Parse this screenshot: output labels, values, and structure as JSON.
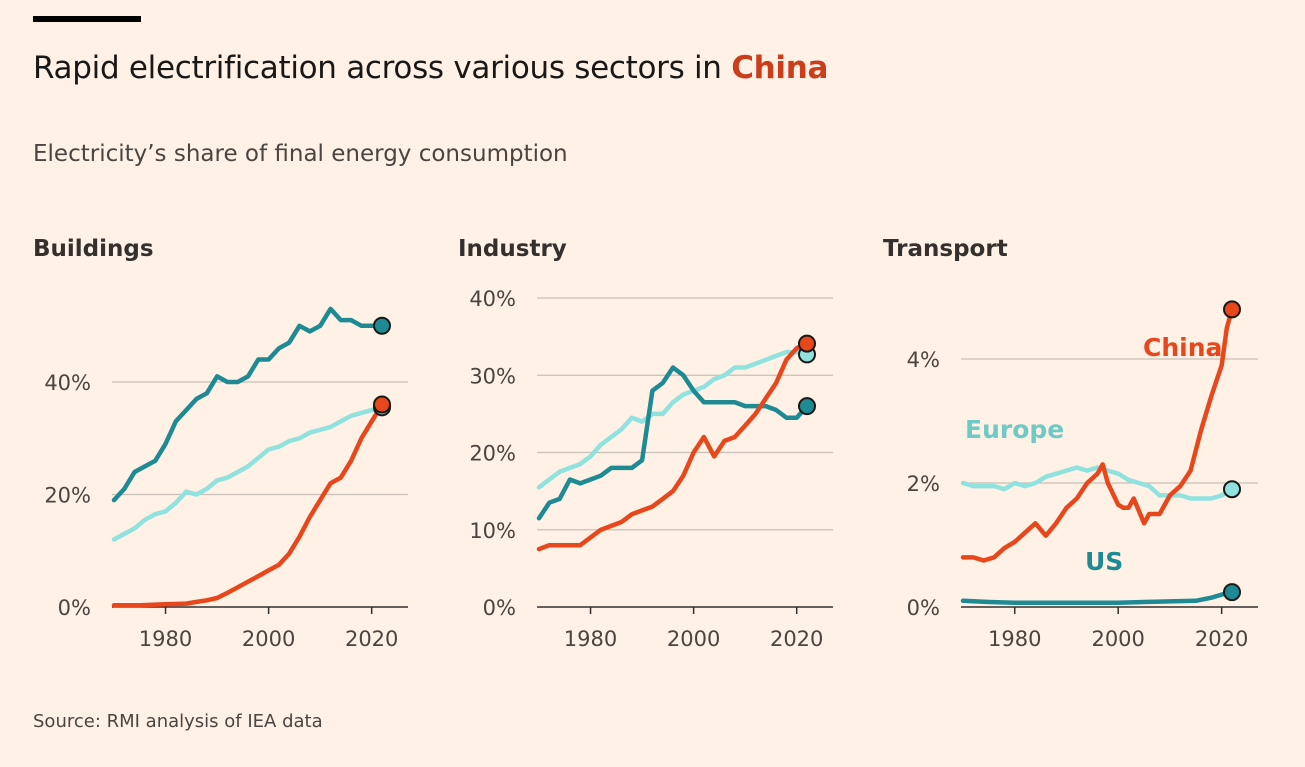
{
  "header": {
    "title_prefix": "Rapid electrification across various sectors in",
    "title_highlight": "China",
    "subtitle": "Electricity’s share of final energy consumption"
  },
  "source": "Source: RMI analysis of IEA data",
  "colors": {
    "background": "#fff1e5",
    "china": "#e8471c",
    "us": "#1e8a94",
    "europe": "#8fe2de",
    "grid": "#c8bfb6",
    "text": "#33302e"
  },
  "chart_data": [
    {
      "type": "line",
      "title": "Buildings",
      "x_ticks": [
        1980,
        2000,
        2020
      ],
      "y_ticks": [
        0,
        20,
        40
      ],
      "y_tick_labels": [
        "0%",
        "20%",
        "40%"
      ],
      "xlim": [
        1970,
        2027
      ],
      "ylim": [
        0,
        55
      ],
      "series": [
        {
          "key": "us",
          "x": [
            1970,
            1972,
            1974,
            1976,
            1978,
            1980,
            1982,
            1984,
            1986,
            1988,
            1990,
            1992,
            1994,
            1996,
            1998,
            2000,
            2002,
            2004,
            2006,
            2008,
            2010,
            2012,
            2014,
            2016,
            2018,
            2020,
            2022
          ],
          "values": [
            19,
            21,
            24,
            25,
            26,
            29,
            33,
            35,
            37,
            38,
            41,
            40,
            40,
            41,
            44,
            44,
            46,
            47,
            50,
            49,
            50,
            53,
            51,
            51,
            50,
            50,
            50
          ]
        },
        {
          "key": "europe",
          "x": [
            1970,
            1972,
            1974,
            1976,
            1978,
            1980,
            1982,
            1984,
            1986,
            1988,
            1990,
            1992,
            1994,
            1996,
            1998,
            2000,
            2002,
            2004,
            2006,
            2008,
            2010,
            2012,
            2014,
            2016,
            2018,
            2020,
            2022
          ],
          "values": [
            12,
            13,
            14,
            15.5,
            16.5,
            17,
            18.5,
            20.5,
            20,
            21,
            22.5,
            23,
            24,
            25,
            26.5,
            28,
            28.5,
            29.5,
            30,
            31,
            31.5,
            32,
            33,
            34,
            34.5,
            35,
            35.5
          ]
        },
        {
          "key": "china",
          "x": [
            1970,
            1975,
            1980,
            1984,
            1986,
            1988,
            1990,
            1992,
            1994,
            1996,
            1998,
            2000,
            2002,
            2004,
            2006,
            2008,
            2010,
            2012,
            2014,
            2016,
            2018,
            2020,
            2022
          ],
          "values": [
            0.3,
            0.3,
            0.5,
            0.6,
            0.9,
            1.2,
            1.6,
            2.5,
            3.5,
            4.5,
            5.5,
            6.5,
            7.5,
            9.5,
            12.5,
            16,
            19,
            22,
            23,
            26,
            30,
            33,
            36
          ]
        }
      ]
    },
    {
      "type": "line",
      "title": "Industry",
      "x_ticks": [
        1980,
        2000,
        2020
      ],
      "y_ticks": [
        0,
        10,
        20,
        30,
        40
      ],
      "y_tick_labels": [
        "0%",
        "10%",
        "20%",
        "30%",
        "40%"
      ],
      "xlim": [
        1970,
        2027
      ],
      "ylim": [
        0,
        40
      ],
      "series": [
        {
          "key": "europe",
          "x": [
            1970,
            1972,
            1974,
            1976,
            1978,
            1980,
            1982,
            1984,
            1986,
            1988,
            1990,
            1992,
            1994,
            1996,
            1998,
            2000,
            2002,
            2004,
            2006,
            2008,
            2010,
            2012,
            2014,
            2016,
            2018,
            2020,
            2022
          ],
          "values": [
            15.5,
            16.5,
            17.5,
            18,
            18.5,
            19.5,
            21,
            22,
            23,
            24.5,
            24,
            25,
            25,
            26.5,
            27.5,
            28,
            28.5,
            29.5,
            30,
            31,
            31,
            31.5,
            32,
            32.5,
            33,
            33,
            32.7
          ]
        },
        {
          "key": "us",
          "x": [
            1970,
            1972,
            1974,
            1976,
            1978,
            1980,
            1982,
            1984,
            1986,
            1988,
            1990,
            1992,
            1994,
            1996,
            1998,
            2000,
            2002,
            2004,
            2006,
            2008,
            2010,
            2012,
            2014,
            2016,
            2018,
            2020,
            2022
          ],
          "values": [
            11.5,
            13.5,
            14,
            16.5,
            16,
            16.5,
            17,
            18,
            18,
            18,
            19,
            28,
            29,
            31,
            30,
            28,
            26.5,
            26.5,
            26.5,
            26.5,
            26,
            26,
            26,
            25.5,
            24.5,
            24.5,
            26
          ]
        },
        {
          "key": "china",
          "x": [
            1970,
            1972,
            1974,
            1976,
            1978,
            1980,
            1982,
            1984,
            1986,
            1988,
            1990,
            1992,
            1994,
            1996,
            1998,
            2000,
            2002,
            2004,
            2006,
            2008,
            2010,
            2012,
            2014,
            2016,
            2018,
            2020,
            2022
          ],
          "values": [
            7.5,
            8,
            8,
            8,
            8,
            9,
            10,
            10.5,
            11,
            12,
            12.5,
            13,
            14,
            15,
            17,
            20,
            22,
            19.5,
            21.5,
            22,
            23.5,
            25,
            27,
            29,
            32,
            33.5,
            34.1
          ]
        }
      ]
    },
    {
      "type": "line",
      "title": "Transport",
      "x_ticks": [
        1980,
        2000,
        2020
      ],
      "y_ticks": [
        0,
        2,
        4
      ],
      "y_tick_labels": [
        "0%",
        "2%",
        "4%"
      ],
      "xlim": [
        1970,
        2027
      ],
      "ylim": [
        0,
        5
      ],
      "annotations": [
        {
          "key": "china",
          "text": "China"
        },
        {
          "key": "europe",
          "text": "Europe"
        },
        {
          "key": "us",
          "text": "US"
        }
      ],
      "series": [
        {
          "key": "europe",
          "x": [
            1970,
            1972,
            1974,
            1976,
            1978,
            1980,
            1982,
            1984,
            1986,
            1988,
            1990,
            1992,
            1994,
            1996,
            1998,
            2000,
            2002,
            2004,
            2006,
            2008,
            2010,
            2012,
            2014,
            2016,
            2018,
            2020,
            2022
          ],
          "values": [
            2.0,
            1.95,
            1.95,
            1.95,
            1.9,
            2.0,
            1.95,
            2.0,
            2.1,
            2.15,
            2.2,
            2.25,
            2.2,
            2.25,
            2.2,
            2.15,
            2.05,
            2.0,
            1.95,
            1.8,
            1.8,
            1.8,
            1.75,
            1.75,
            1.75,
            1.8,
            1.9
          ]
        },
        {
          "key": "us",
          "x": [
            1970,
            1975,
            1980,
            1985,
            1990,
            1995,
            2000,
            2005,
            2010,
            2015,
            2018,
            2020,
            2022
          ],
          "values": [
            0.1,
            0.08,
            0.07,
            0.07,
            0.07,
            0.07,
            0.07,
            0.08,
            0.09,
            0.1,
            0.15,
            0.2,
            0.24
          ]
        },
        {
          "key": "china",
          "x": [
            1970,
            1972,
            1974,
            1976,
            1978,
            1980,
            1982,
            1984,
            1986,
            1988,
            1990,
            1992,
            1994,
            1996,
            1997,
            1998,
            2000,
            2001,
            2002,
            2003,
            2004,
            2005,
            2006,
            2008,
            2010,
            2012,
            2014,
            2016,
            2018,
            2020,
            2021,
            2022
          ],
          "values": [
            0.8,
            0.8,
            0.75,
            0.8,
            0.95,
            1.05,
            1.2,
            1.35,
            1.15,
            1.35,
            1.6,
            1.75,
            2.0,
            2.15,
            2.3,
            2.0,
            1.65,
            1.6,
            1.6,
            1.75,
            1.55,
            1.35,
            1.5,
            1.5,
            1.8,
            1.95,
            2.2,
            2.85,
            3.4,
            3.9,
            4.5,
            4.8
          ]
        }
      ]
    }
  ]
}
